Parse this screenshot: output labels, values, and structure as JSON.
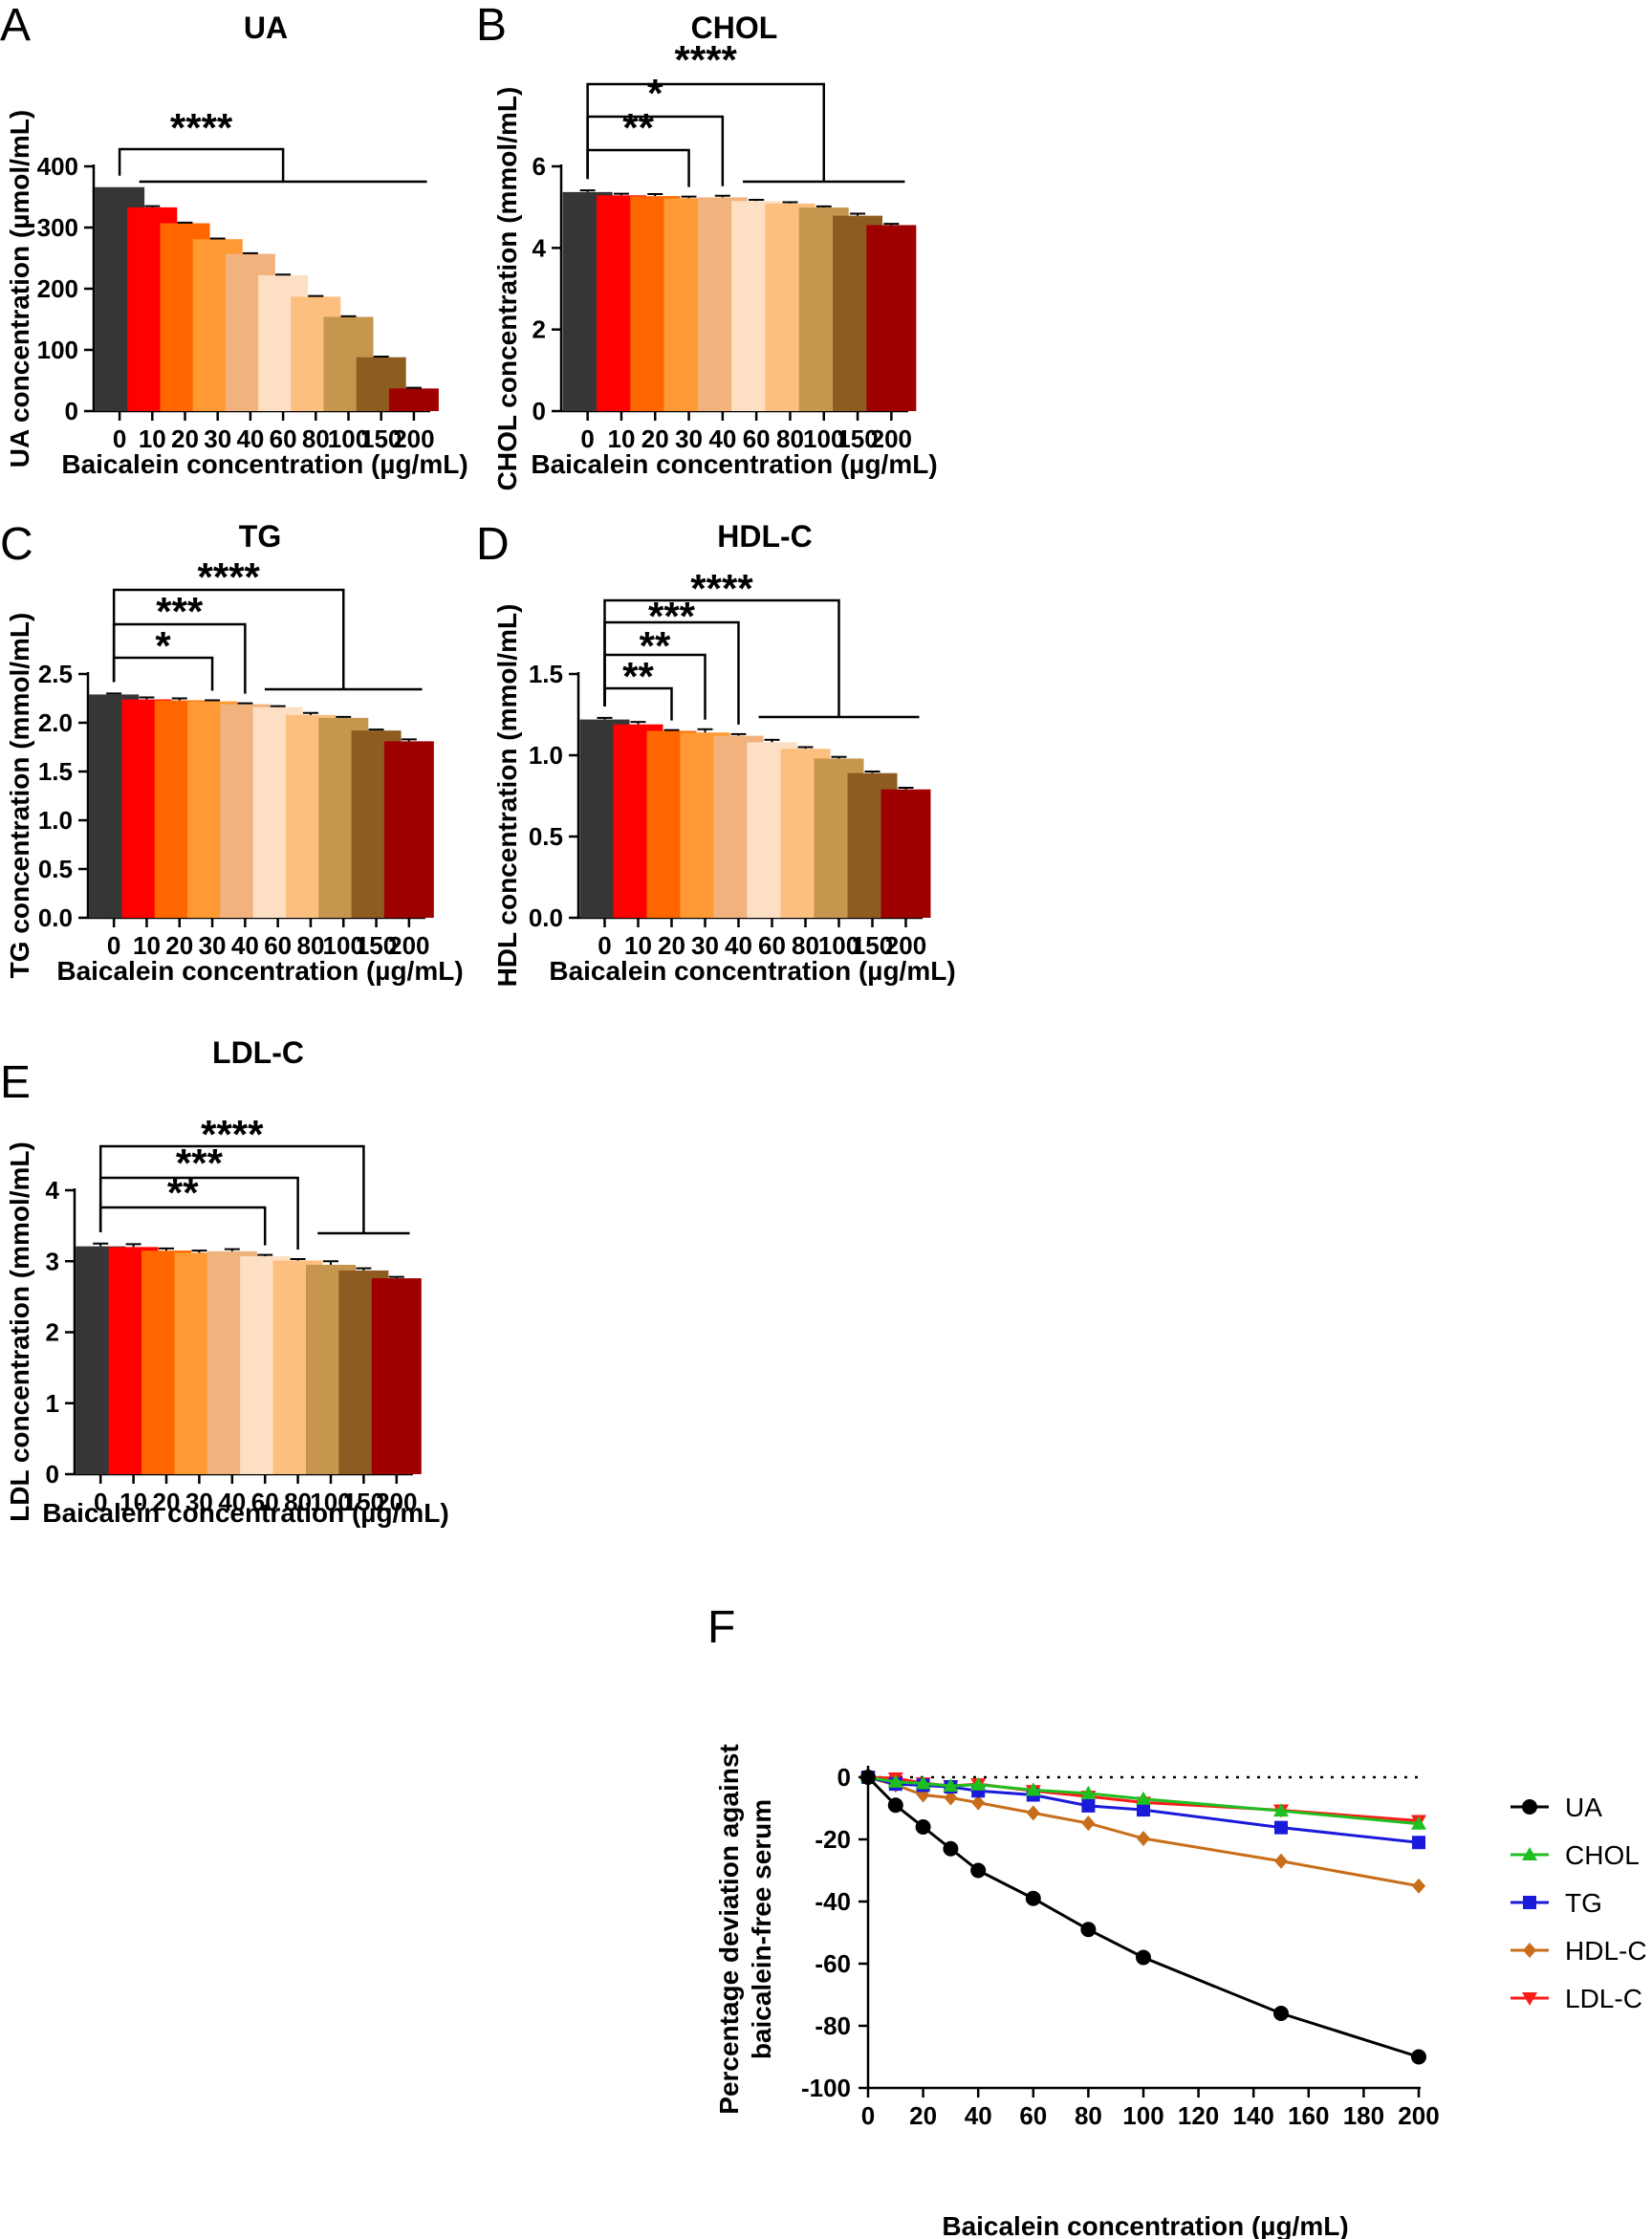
{
  "figure": {
    "panel_labels": [
      "A",
      "B",
      "C",
      "D",
      "E",
      "F"
    ],
    "bar_colors": [
      "#363636",
      "#ff0000",
      "#ff6600",
      "#ff9933",
      "#f2b27d",
      "#fde0c4",
      "#fdbf80",
      "#c6964f",
      "#8e5c20",
      "#9e0000"
    ]
  },
  "chart_data": [
    {
      "type": "bar",
      "panel": "A",
      "title": "UA",
      "xlabel": "Baicalein concentration (µg/mL)",
      "ylabel": "UA concentration (µmol/mL)",
      "categories": [
        "0",
        "10",
        "20",
        "30",
        "40",
        "60",
        "80",
        "100",
        "150",
        "200"
      ],
      "values": [
        366,
        333,
        307,
        281,
        257,
        222,
        187,
        154,
        88,
        37
      ],
      "errors": [
        0,
        2,
        1,
        1,
        1,
        1,
        1,
        1,
        1,
        1
      ],
      "ylim": [
        0,
        400
      ],
      "yticks": [
        "0",
        "100",
        "200",
        "300",
        "400"
      ],
      "significance": [
        {
          "label": "****",
          "from": 0,
          "to_group": [
            1,
            9
          ]
        }
      ]
    },
    {
      "type": "bar",
      "panel": "B",
      "title": "CHOL",
      "xlabel": "Baicalein concentration (µg/mL)",
      "ylabel": "CHOL concentration (mmol/mL)",
      "categories": [
        "0",
        "10",
        "20",
        "30",
        "40",
        "60",
        "80",
        "100",
        "150",
        "200"
      ],
      "values": [
        5.37,
        5.29,
        5.27,
        5.22,
        5.24,
        5.15,
        5.09,
        4.99,
        4.79,
        4.56
      ],
      "errors": [
        0.04,
        0.04,
        0.05,
        0.04,
        0.04,
        0.03,
        0.03,
        0.03,
        0.05,
        0.03
      ],
      "ylim": [
        0,
        6
      ],
      "yticks": [
        "0",
        "2",
        "4",
        "6"
      ],
      "significance": [
        {
          "label": "**",
          "from": 0,
          "to": 3
        },
        {
          "label": "*",
          "from": 0,
          "to": 4
        },
        {
          "label": "****",
          "from": 0,
          "to_group": [
            5,
            9
          ]
        }
      ]
    },
    {
      "type": "bar",
      "panel": "C",
      "title": "TG",
      "xlabel": "Baicalein concentration (µg/mL)",
      "ylabel": "TG concentration (mmol/mL)",
      "categories": [
        "0",
        "10",
        "20",
        "30",
        "40",
        "60",
        "80",
        "100",
        "150",
        "200"
      ],
      "values": [
        2.29,
        2.24,
        2.23,
        2.22,
        2.19,
        2.16,
        2.08,
        2.05,
        1.92,
        1.81
      ],
      "errors": [
        0.01,
        0.02,
        0.02,
        0.01,
        0.01,
        0.01,
        0.02,
        0.01,
        0.01,
        0.02
      ],
      "ylim": [
        0,
        2.5
      ],
      "yticks": [
        "0.0",
        "0.5",
        "1.0",
        "1.5",
        "2.0",
        "2.5"
      ],
      "significance": [
        {
          "label": "*",
          "from": 0,
          "to": 3
        },
        {
          "label": "***",
          "from": 0,
          "to": 4
        },
        {
          "label": "****",
          "from": 0,
          "to_group": [
            5,
            9
          ]
        }
      ]
    },
    {
      "type": "bar",
      "panel": "D",
      "title": "HDL-C",
      "xlabel": "Baicalein concentration (µg/mL)",
      "ylabel": "HDL concentration (mmol/mL)",
      "categories": [
        "0",
        "10",
        "20",
        "30",
        "40",
        "60",
        "80",
        "100",
        "150",
        "200"
      ],
      "values": [
        1.22,
        1.19,
        1.15,
        1.14,
        1.12,
        1.08,
        1.04,
        0.98,
        0.89,
        0.79
      ],
      "errors": [
        0.01,
        0.015,
        0.005,
        0.02,
        0.01,
        0.015,
        0.01,
        0.01,
        0.01,
        0.01
      ],
      "ylim": [
        0,
        1.5
      ],
      "yticks": [
        "0.0",
        "0.5",
        "1.0",
        "1.5"
      ],
      "significance": [
        {
          "label": "**",
          "from": 0,
          "to": 2
        },
        {
          "label": "**",
          "from": 0,
          "to": 3
        },
        {
          "label": "***",
          "from": 0,
          "to": 4
        },
        {
          "label": "****",
          "from": 0,
          "to_group": [
            5,
            9
          ]
        }
      ]
    },
    {
      "type": "bar",
      "panel": "E",
      "title": "LDL-C",
      "xlabel": "Baicalein concentration (µg/mL)",
      "ylabel": "LDL concentration (mmol/mL)",
      "categories": [
        "0",
        "10",
        "20",
        "30",
        "40",
        "60",
        "80",
        "100",
        "150",
        "200"
      ],
      "values": [
        3.21,
        3.2,
        3.15,
        3.12,
        3.14,
        3.07,
        3.01,
        2.95,
        2.87,
        2.76
      ],
      "errors": [
        0.04,
        0.04,
        0.03,
        0.03,
        0.03,
        0.02,
        0.02,
        0.05,
        0.03,
        0.02
      ],
      "ylim": [
        0,
        4
      ],
      "yticks": [
        "0",
        "1",
        "2",
        "3",
        "4"
      ],
      "significance": [
        {
          "label": "**",
          "from": 0,
          "to": 5
        },
        {
          "label": "***",
          "from": 0,
          "to": 6
        },
        {
          "label": "****",
          "from": 0,
          "to_group": [
            7,
            9
          ]
        }
      ]
    },
    {
      "type": "line",
      "panel": "F",
      "title": "",
      "xlabel": "Baicalein concentration (µg/mL)",
      "ylabel_lines": [
        "Percentage deviation against",
        "baicalein-free serum"
      ],
      "x": [
        0,
        10,
        20,
        30,
        40,
        60,
        80,
        100,
        150,
        200
      ],
      "xlim": [
        0,
        200
      ],
      "xticks": [
        "0",
        "20",
        "40",
        "60",
        "80",
        "100",
        "120",
        "140",
        "160",
        "180",
        "200"
      ],
      "ylim": [
        -100,
        0
      ],
      "yticks": [
        "0",
        "-20",
        "-40",
        "-60",
        "-80",
        "-100"
      ],
      "reference_line": 0,
      "series": [
        {
          "name": "UA",
          "color": "#000000",
          "marker": "circle",
          "values": [
            0,
            -9,
            -16,
            -23,
            -30,
            -39,
            -49,
            -58,
            -76,
            -90
          ]
        },
        {
          "name": "CHOL",
          "color": "#1fbf1f",
          "marker": "triangle-up",
          "values": [
            0,
            -1.5,
            -2,
            -2.8,
            -2.4,
            -4.1,
            -5.2,
            -7,
            -10.8,
            -15
          ]
        },
        {
          "name": "TG",
          "color": "#1a1adb",
          "marker": "square",
          "values": [
            0,
            -2.2,
            -2.6,
            -3.1,
            -4.4,
            -5.7,
            -9.2,
            -10.5,
            -16.2,
            -21
          ]
        },
        {
          "name": "HDL-C",
          "color": "#c86e1a",
          "marker": "diamond",
          "values": [
            0,
            -2.5,
            -5.7,
            -6.6,
            -8.2,
            -11.5,
            -14.8,
            -19.7,
            -27,
            -35
          ]
        },
        {
          "name": "LDL-C",
          "color": "#ff1a1a",
          "marker": "triangle-down",
          "values": [
            0,
            -0.3,
            -1.9,
            -2.8,
            -2.2,
            -4.4,
            -6.2,
            -8.1,
            -10.6,
            -14
          ]
        }
      ]
    }
  ]
}
